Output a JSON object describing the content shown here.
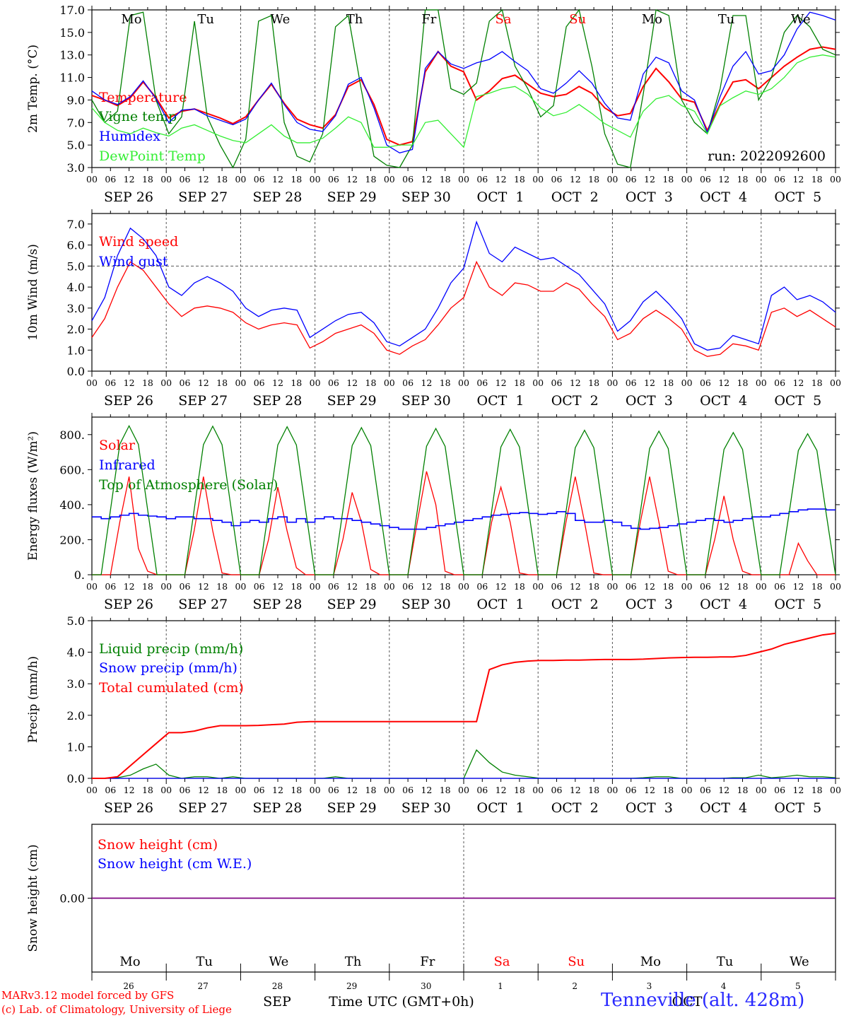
{
  "meta": {
    "run_label": "run: 2022092600",
    "station": "Tenneville (alt. 428m)",
    "credit_line1": "MARv3.12 model forced by GFS",
    "credit_line2": "(c) Lab. of Climatology, University of Liege",
    "time_axis_label": "Time UTC (GMT+0h)",
    "month_left": "SEP",
    "month_right": "OCT",
    "hour_ticks": [
      "00",
      "06",
      "12",
      "18"
    ],
    "day_labels": [
      "SEP 26",
      "SEP 27",
      "SEP 28",
      "SEP 29",
      "SEP 30",
      "OCT  1",
      "OCT  2",
      "OCT  3",
      "OCT  4",
      "OCT  5"
    ],
    "weekdays": [
      "Mo",
      "Tu",
      "We",
      "Th",
      "Fr",
      "Sa",
      "Su",
      "Mo",
      "Tu",
      "We"
    ],
    "weekend_days": [
      5,
      6
    ],
    "day_numbers": [
      "26",
      "27",
      "28",
      "29",
      "30",
      "1",
      "2",
      "3",
      "4",
      "5"
    ],
    "colors": {
      "red": "#ff0000",
      "green": "#008000",
      "blue": "#0000ff",
      "lightgreen": "#33ee33",
      "purple": "#800080",
      "grid": "#555555"
    }
  },
  "chart_data": [
    {
      "id": "temp",
      "type": "line",
      "ylabel": "2m Temp. (°C)",
      "ylim": [
        3,
        17
      ],
      "yticks": [
        "3.0",
        "5.0",
        "7.0",
        "9.0",
        "11.0",
        "13.0",
        "15.0",
        "17.0"
      ],
      "ytick_values": [
        3,
        5,
        7,
        9,
        11,
        13,
        15,
        17
      ],
      "hour_step": 6,
      "x_start": "2022-09-26 00 UTC",
      "series": [
        {
          "name": "Temperature",
          "color": "#ff0000",
          "values": [
            9.4,
            9.0,
            8.5,
            9.2,
            10.6,
            9.2,
            7.4,
            8.0,
            8.2,
            7.8,
            7.4,
            6.9,
            7.5,
            9.0,
            10.4,
            8.7,
            7.3,
            6.8,
            6.5,
            7.7,
            10.2,
            10.8,
            8.6,
            5.5,
            5.0,
            5.3,
            11.5,
            13.3,
            12.0,
            11.5,
            9.0,
            9.8,
            10.9,
            11.2,
            10.4,
            9.6,
            9.3,
            9.5,
            10.2,
            9.6,
            8.3,
            7.6,
            7.8,
            10.2,
            11.8,
            10.6,
            9.1,
            8.8,
            6.3,
            8.6,
            10.6,
            10.8,
            10.0,
            11.0,
            12.0,
            12.8,
            13.5,
            13.7,
            13.5
          ]
        },
        {
          "name": "Vigne temp",
          "color": "#008000",
          "values": [
            9.0,
            7.0,
            8.0,
            16.5,
            16.8,
            9.0,
            6.0,
            7.5,
            16.0,
            7.5,
            5.0,
            3.0,
            5.5,
            16.0,
            16.5,
            7.0,
            4.0,
            3.5,
            6.0,
            15.5,
            16.5,
            10.0,
            4.0,
            3.2,
            3.0,
            5.0,
            17.0,
            17.0,
            10.0,
            9.5,
            10.5,
            16.0,
            17.0,
            12.0,
            10.0,
            7.5,
            8.5,
            15.5,
            17.0,
            12.0,
            6.0,
            3.3,
            3.0,
            9.5,
            17.0,
            16.5,
            9.0,
            7.0,
            6.0,
            10.0,
            16.5,
            16.5,
            9.0,
            11.0,
            15.0,
            16.5,
            15.5,
            13.5,
            13.0
          ]
        },
        {
          "name": "Humidex",
          "color": "#0000ff",
          "values": [
            9.8,
            9.0,
            8.6,
            9.3,
            10.7,
            9.1,
            7.0,
            8.1,
            8.2,
            7.6,
            7.2,
            6.8,
            7.3,
            9.0,
            10.5,
            8.6,
            7.0,
            6.4,
            6.2,
            7.6,
            10.4,
            11.0,
            8.3,
            5.0,
            4.3,
            4.6,
            11.8,
            13.3,
            12.2,
            11.8,
            12.3,
            12.6,
            13.3,
            12.4,
            11.6,
            10.0,
            9.6,
            10.5,
            11.6,
            10.5,
            8.7,
            7.4,
            7.2,
            11.3,
            12.8,
            12.3,
            9.8,
            9.0,
            6.1,
            9.3,
            12.0,
            13.3,
            11.3,
            11.6,
            13.0,
            15.3,
            16.8,
            16.5,
            16.1
          ]
        },
        {
          "name": "DewPoint Temp",
          "color": "#33ee33",
          "values": [
            8.3,
            7.0,
            6.3,
            6.0,
            6.5,
            6.1,
            5.8,
            6.5,
            6.8,
            6.3,
            5.8,
            5.4,
            5.2,
            6.0,
            6.8,
            5.8,
            5.2,
            5.2,
            5.6,
            6.5,
            7.5,
            7.0,
            4.8,
            4.8,
            5.0,
            5.0,
            7.0,
            7.2,
            6.0,
            4.8,
            9.3,
            9.6,
            10.0,
            10.2,
            9.5,
            8.3,
            7.6,
            7.9,
            8.6,
            7.8,
            6.9,
            6.3,
            5.7,
            8.0,
            9.1,
            9.4,
            8.5,
            8.0,
            6.0,
            8.5,
            9.2,
            9.8,
            9.5,
            10.0,
            11.0,
            12.3,
            12.8,
            13.0,
            12.8
          ]
        }
      ]
    },
    {
      "id": "wind",
      "type": "line",
      "ylabel": "10m Wind (m/s)",
      "ylim": [
        0,
        7.5
      ],
      "yticks": [
        "0.0",
        "1.0",
        "2.0",
        "3.0",
        "4.0",
        "5.0",
        "6.0",
        "7.0"
      ],
      "ytick_values": [
        0,
        1,
        2,
        3,
        4,
        5,
        6,
        7
      ],
      "hlines": [
        5
      ],
      "hour_step": 6,
      "x_start": "2022-09-26 00 UTC",
      "series": [
        {
          "name": "Wind speed",
          "color": "#ff0000",
          "values": [
            1.6,
            2.5,
            4.0,
            5.2,
            4.8,
            4.0,
            3.2,
            2.6,
            3.0,
            3.1,
            3.0,
            2.8,
            2.3,
            2.0,
            2.2,
            2.3,
            2.2,
            1.1,
            1.4,
            1.8,
            2.0,
            2.2,
            1.8,
            1.0,
            0.8,
            1.2,
            1.5,
            2.2,
            3.0,
            3.5,
            5.2,
            4.0,
            3.6,
            4.2,
            4.1,
            3.8,
            3.8,
            4.2,
            3.9,
            3.2,
            2.6,
            1.5,
            1.8,
            2.5,
            2.9,
            2.5,
            2.0,
            1.0,
            0.7,
            0.8,
            1.3,
            1.2,
            1.0,
            2.8,
            3.0,
            2.6,
            2.9,
            2.5,
            2.1
          ]
        },
        {
          "name": "Wind gust",
          "color": "#0000ff",
          "values": [
            2.4,
            3.5,
            5.5,
            6.8,
            6.3,
            5.5,
            4.0,
            3.6,
            4.2,
            4.5,
            4.2,
            3.8,
            3.0,
            2.6,
            2.9,
            3.0,
            2.9,
            1.6,
            2.0,
            2.4,
            2.7,
            2.8,
            2.3,
            1.4,
            1.2,
            1.6,
            2.0,
            3.0,
            4.2,
            4.9,
            7.1,
            5.6,
            5.2,
            5.9,
            5.6,
            5.3,
            5.4,
            5.0,
            4.6,
            3.9,
            3.2,
            1.9,
            2.4,
            3.3,
            3.8,
            3.2,
            2.5,
            1.3,
            1.0,
            1.1,
            1.7,
            1.5,
            1.3,
            3.6,
            4.0,
            3.4,
            3.6,
            3.3,
            2.8
          ]
        }
      ]
    },
    {
      "id": "energy",
      "type": "line",
      "ylabel": "Energy fluxes (W/m²)",
      "ylim": [
        0,
        900
      ],
      "yticks": [
        "0.",
        "200.",
        "400.",
        "600.",
        "800."
      ],
      "ytick_values": [
        0,
        200,
        400,
        600,
        800
      ],
      "hour_step": 3,
      "x_start": "2022-09-26 00 UTC",
      "series": [
        {
          "name": "Solar",
          "color": "#ff0000",
          "values": [
            0,
            0,
            0,
            300,
            560,
            150,
            20,
            0,
            0,
            0,
            0,
            250,
            560,
            250,
            10,
            0,
            0,
            0,
            0,
            200,
            500,
            250,
            40,
            0,
            0,
            0,
            0,
            200,
            470,
            300,
            30,
            0,
            0,
            0,
            0,
            300,
            590,
            400,
            20,
            0,
            0,
            0,
            0,
            300,
            500,
            300,
            10,
            0,
            0,
            0,
            0,
            300,
            560,
            300,
            10,
            0,
            0,
            0,
            0,
            300,
            560,
            300,
            20,
            0,
            0,
            0,
            0,
            200,
            450,
            200,
            20,
            0,
            0,
            0,
            0,
            0,
            180,
            80,
            0,
            0,
            0
          ]
        },
        {
          "name": "Infrared",
          "color": "#0000ff",
          "values": [
            330,
            320,
            330,
            340,
            350,
            340,
            335,
            330,
            320,
            330,
            330,
            320,
            320,
            310,
            300,
            280,
            300,
            310,
            300,
            320,
            330,
            300,
            320,
            300,
            320,
            330,
            320,
            320,
            310,
            300,
            290,
            280,
            270,
            260,
            260,
            260,
            270,
            280,
            290,
            300,
            310,
            320,
            330,
            340,
            345,
            350,
            355,
            350,
            345,
            350,
            360,
            350,
            310,
            300,
            300,
            310,
            300,
            280,
            265,
            260,
            265,
            270,
            280,
            290,
            300,
            310,
            320,
            310,
            300,
            310,
            320,
            330,
            330,
            340,
            350,
            360,
            370,
            375,
            375,
            370,
            370
          ]
        },
        {
          "name": "Top of Atmosphere (Solar)",
          "color": "#008000",
          "values": [
            0,
            0,
            370,
            745,
            850,
            745,
            370,
            0,
            0,
            0,
            0,
            370,
            743,
            848,
            743,
            370,
            0,
            0,
            0,
            368,
            741,
            845,
            741,
            368,
            0,
            0,
            0,
            366,
            737,
            840,
            737,
            366,
            0,
            0,
            0,
            363,
            733,
            835,
            733,
            363,
            0,
            0,
            0,
            361,
            729,
            830,
            729,
            361,
            0,
            0,
            0,
            358,
            725,
            825,
            725,
            358,
            0,
            0,
            0,
            356,
            721,
            820,
            721,
            356,
            0,
            0,
            0,
            352,
            715,
            812,
            715,
            352,
            0,
            0,
            0,
            348,
            709,
            805,
            709,
            348,
            0
          ]
        }
      ]
    },
    {
      "id": "precip",
      "type": "line",
      "ylabel": "Precip (mm/h)",
      "ylim": [
        0,
        5
      ],
      "yticks": [
        "0.0",
        "1.0",
        "2.0",
        "3.0",
        "4.0",
        "5.0"
      ],
      "ytick_values": [
        0,
        1,
        2,
        3,
        4,
        5
      ],
      "hour_step": 6,
      "x_start": "2022-09-26 00 UTC",
      "series": [
        {
          "name": "Liquid precip (mm/h)",
          "color": "#008000",
          "values": [
            0,
            0,
            0.02,
            0.1,
            0.3,
            0.45,
            0.1,
            0,
            0.05,
            0.05,
            0,
            0.05,
            0,
            0,
            0,
            0,
            0,
            0,
            0,
            0.05,
            0,
            0,
            0,
            0,
            0,
            0,
            0,
            0,
            0,
            0,
            0.9,
            0.5,
            0.2,
            0.1,
            0.05,
            0,
            0,
            0,
            0,
            0,
            0,
            0,
            0,
            0.02,
            0.05,
            0.05,
            0,
            0,
            0,
            0,
            0.02,
            0.02,
            0.1,
            0.02,
            0.05,
            0.1,
            0.05,
            0.05,
            0.02
          ]
        },
        {
          "name": "Snow precip (mm/h)",
          "color": "#0000ff",
          "values": [
            0,
            0,
            0,
            0,
            0,
            0,
            0,
            0,
            0,
            0,
            0,
            0,
            0,
            0,
            0,
            0,
            0,
            0,
            0,
            0,
            0,
            0,
            0,
            0,
            0,
            0,
            0,
            0,
            0,
            0,
            0,
            0,
            0,
            0,
            0,
            0,
            0,
            0,
            0,
            0,
            0,
            0,
            0,
            0,
            0,
            0,
            0,
            0,
            0,
            0,
            0,
            0,
            0,
            0,
            0,
            0,
            0,
            0,
            0
          ]
        },
        {
          "name": "Total cumulated (cm)",
          "color": "#ff0000",
          "values": [
            0,
            0,
            0.05,
            0.4,
            0.75,
            1.1,
            1.45,
            1.45,
            1.5,
            1.6,
            1.67,
            1.67,
            1.67,
            1.68,
            1.7,
            1.72,
            1.78,
            1.8,
            1.8,
            1.8,
            1.8,
            1.8,
            1.8,
            1.8,
            1.8,
            1.8,
            1.8,
            1.8,
            1.8,
            1.8,
            1.8,
            3.45,
            3.6,
            3.68,
            3.72,
            3.74,
            3.74,
            3.75,
            3.75,
            3.76,
            3.77,
            3.77,
            3.77,
            3.78,
            3.8,
            3.82,
            3.83,
            3.84,
            3.84,
            3.85,
            3.85,
            3.9,
            4.0,
            4.1,
            4.25,
            4.35,
            4.45,
            4.55,
            4.6
          ]
        }
      ]
    },
    {
      "id": "snow",
      "type": "line",
      "ylabel": "Snow height (cm)",
      "yticks": [
        "0.00"
      ],
      "ytick_values": [
        0
      ],
      "ylim": [
        -1,
        1
      ],
      "hour_step": 6,
      "x_start": "2022-09-26 00 UTC",
      "series": [
        {
          "name": "Snow height (cm)",
          "color": "#ff0000",
          "values": [
            0,
            0
          ]
        },
        {
          "name": "Snow height (cm W.E.)",
          "color": "#0000ff",
          "values": [
            0,
            0
          ]
        }
      ]
    }
  ]
}
